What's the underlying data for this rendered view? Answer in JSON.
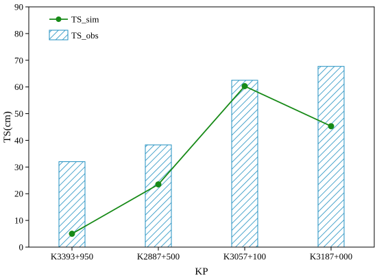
{
  "chart_data": {
    "type": "bar",
    "title": "",
    "xlabel": "KP",
    "ylabel": "TS(cm)",
    "categories": [
      "K3393+950",
      "K2887+500",
      "K3057+100",
      "K3187+000"
    ],
    "ylim": [
      0,
      90
    ],
    "yticks": [
      0,
      10,
      20,
      30,
      40,
      50,
      60,
      70,
      80,
      90
    ],
    "grid": false,
    "legend_position": "top-left",
    "series": [
      {
        "name": "TS_obs",
        "type": "bar",
        "pattern": "diagonal-hatch",
        "color": "#1f8fc0",
        "values": [
          32,
          38.3,
          62.5,
          67.7
        ]
      },
      {
        "name": "TS_sim",
        "type": "line",
        "marker": "circle",
        "color": "#178a17",
        "values": [
          5,
          23.5,
          60.3,
          45.3
        ]
      }
    ]
  }
}
